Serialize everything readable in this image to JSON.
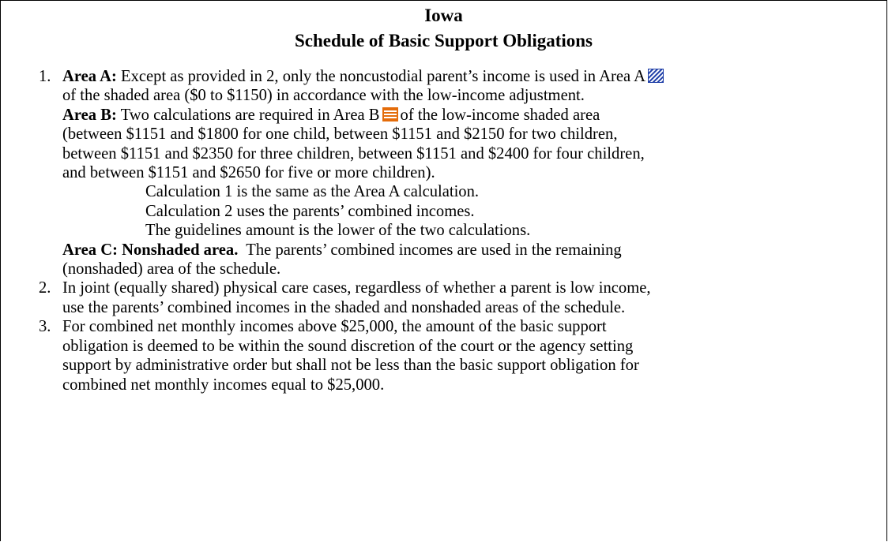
{
  "header": {
    "title": "Iowa",
    "subtitle": "Schedule of Basic Support Obligations"
  },
  "items": [
    {
      "number": "1.",
      "area_a": {
        "label": "Area A:",
        "lines": [
          "Except as provided in 2, only the noncustodial parent’s income is used in Area A",
          "of the shaded area ($0 to $1150) in accordance with the low-income adjustment."
        ]
      },
      "area_b": {
        "label": "Area B:",
        "lines": [
          "Two calculations are required in Area B",
          "of the low-income shaded area",
          "(between $1151 and $1800 for one child, between $1151 and $2150 for two children,",
          "between $1151 and $2350 for three children, between $1151 and $2400 for four children,",
          "and between $1151 and $2650 for five or more children)."
        ],
        "calculations": [
          "Calculation 1 is the same as the Area A calculation.",
          "Calculation 2 uses the parents’ combined incomes.",
          "The guidelines amount is the lower of the two calculations."
        ]
      },
      "area_c": {
        "label": "Area C:  Nonshaded area.",
        "lines": [
          "The parents’ combined incomes are used in the remaining",
          "(nonshaded) area of the schedule."
        ]
      }
    },
    {
      "number": "2.",
      "lines": [
        "In joint (equally shared) physical care cases, regardless of whether a parent is low income,",
        "use the parents’ combined incomes in the shaded and nonshaded areas of the schedule."
      ]
    },
    {
      "number": "3.",
      "lines": [
        "For combined net monthly incomes above $25,000, the amount of the basic support",
        "obligation is deemed to be within the sound discretion of the court or the agency setting",
        "support by administrative order but shall not be less than the basic support obligation for",
        "combined net monthly incomes equal to $25,000."
      ]
    }
  ]
}
